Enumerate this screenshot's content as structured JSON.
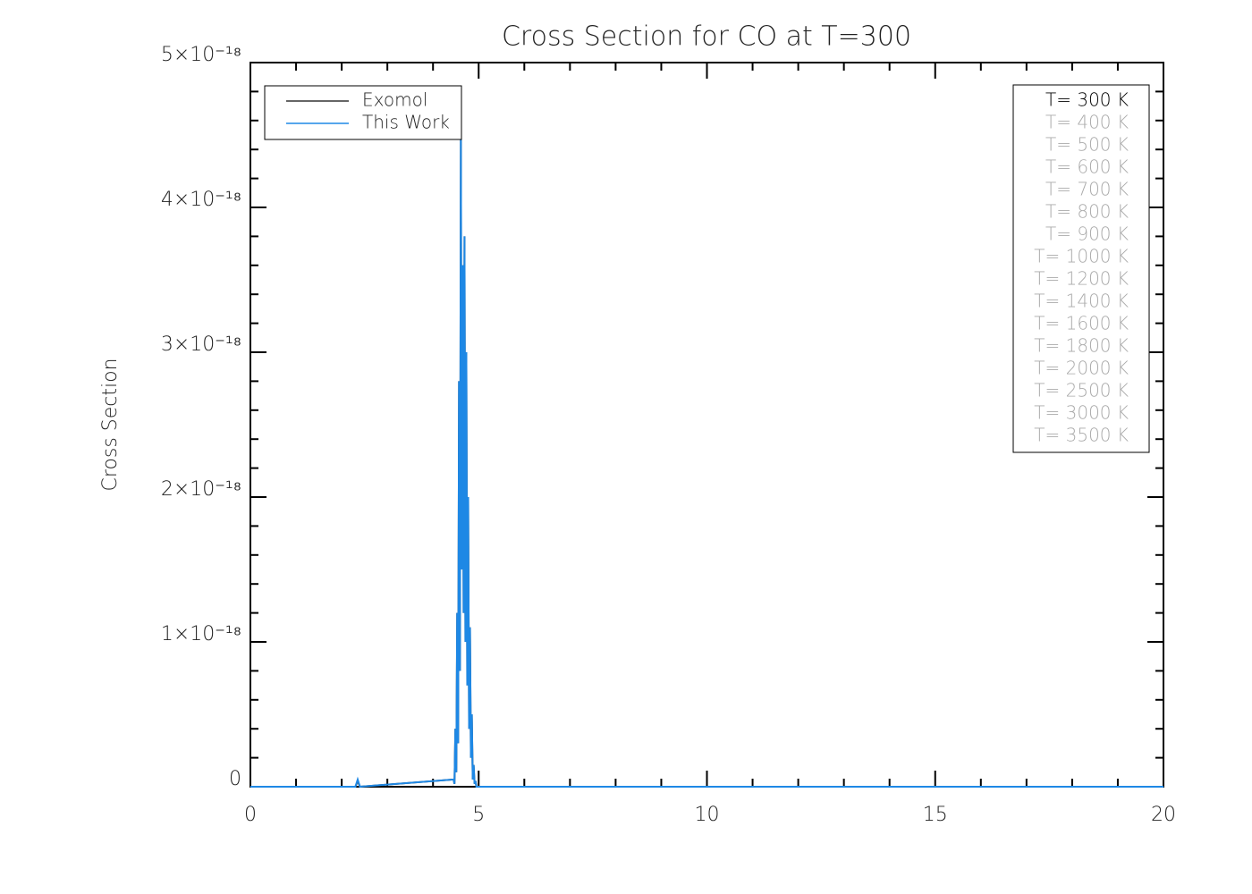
{
  "chart_data": {
    "type": "line",
    "title": "Cross Section for CO at T=300",
    "y_label": "Cross Section",
    "x": [
      0,
      1.2,
      2.3,
      2.35,
      2.4,
      4.45,
      4.47,
      4.49,
      4.51,
      4.53,
      4.55,
      4.57,
      4.59,
      4.61,
      4.63,
      4.65,
      4.67,
      4.69,
      4.71,
      4.73,
      4.75,
      4.77,
      4.79,
      4.81,
      4.83,
      4.85,
      4.87,
      4.89,
      4.91,
      4.93,
      4.95,
      4.97,
      5.1,
      20
    ],
    "series": [
      {
        "name": "Exomol",
        "color": "#333333",
        "values": [
          0,
          0,
          0,
          4e-20,
          0,
          5e-20,
          2e-20,
          4e-19,
          1e-19,
          1.2e-18,
          3e-19,
          2.8e-18,
          8e-19,
          4.5e-18,
          1.5e-18,
          3.6e-18,
          1.2e-18,
          3.8e-18,
          1e-18,
          3e-18,
          7e-19,
          2e-18,
          4e-19,
          1.1e-18,
          2e-19,
          5e-19,
          5e-20,
          1.5e-19,
          2e-20,
          4e-20,
          0,
          0,
          0,
          0
        ]
      },
      {
        "name": "This Work",
        "color": "#1e88e5",
        "values": [
          0,
          0,
          0,
          5e-20,
          0,
          5e-20,
          2e-20,
          4e-19,
          1e-19,
          1.2e-18,
          3e-19,
          2.8e-18,
          8e-19,
          4.5e-18,
          1.5e-18,
          3.6e-18,
          1.2e-18,
          3.8e-18,
          1e-18,
          3e-18,
          7e-19,
          2e-18,
          4e-19,
          1.1e-18,
          2e-19,
          5e-19,
          5e-20,
          1.5e-19,
          2e-20,
          4e-20,
          0,
          0,
          0,
          0
        ]
      }
    ],
    "xlim": [
      0,
      20
    ],
    "xticks": [
      0,
      5,
      10,
      15,
      20
    ],
    "xminor": [
      1,
      2,
      3,
      4,
      6,
      7,
      8,
      9,
      11,
      12,
      13,
      14,
      16,
      17,
      18,
      19
    ],
    "ylim": [
      0,
      5e-18
    ],
    "yticks": [
      0,
      {
        "value": 1e-18,
        "label": "1×10⁻¹⁸"
      },
      {
        "value": 2e-18,
        "label": "2×10⁻¹⁸"
      },
      {
        "value": 3e-18,
        "label": "3×10⁻¹⁸"
      },
      {
        "value": 4e-18,
        "label": "4×10⁻¹⁸"
      },
      {
        "value": 5e-18,
        "label": "5×10⁻¹⁸"
      }
    ],
    "yminor": [
      2e-19,
      4e-19,
      6e-19,
      8e-19,
      1.2e-18,
      1.4e-18,
      1.6e-18,
      1.8e-18,
      2.2e-18,
      2.4e-18,
      2.6e-18,
      2.8e-18,
      3.2e-18,
      3.4e-18,
      3.6e-18,
      3.8e-18,
      4.2e-18,
      4.4e-18,
      4.6e-18,
      4.8e-18
    ],
    "legend_position": "upper left",
    "temperature_legend": [
      {
        "text": "T= 300 K",
        "color": "#000000"
      },
      {
        "text": "T= 400 K",
        "color": "#aaaaaa"
      },
      {
        "text": "T= 500 K",
        "color": "#aaaaaa"
      },
      {
        "text": "T= 600 K",
        "color": "#aaaaaa"
      },
      {
        "text": "T= 700 K",
        "color": "#aaaaaa"
      },
      {
        "text": "T= 800 K",
        "color": "#aaaaaa"
      },
      {
        "text": "T= 900 K",
        "color": "#aaaaaa"
      },
      {
        "text": "T= 1000 K",
        "color": "#aaaaaa"
      },
      {
        "text": "T= 1200 K",
        "color": "#aaaaaa"
      },
      {
        "text": "T= 1400 K",
        "color": "#aaaaaa"
      },
      {
        "text": "T= 1600 K",
        "color": "#aaaaaa"
      },
      {
        "text": "T= 1800 K",
        "color": "#aaaaaa"
      },
      {
        "text": "T= 2000 K",
        "color": "#aaaaaa"
      },
      {
        "text": "T= 2500 K",
        "color": "#aaaaaa"
      },
      {
        "text": "T= 3000 K",
        "color": "#aaaaaa"
      },
      {
        "text": "T= 3500 K",
        "color": "#aaaaaa"
      }
    ]
  }
}
